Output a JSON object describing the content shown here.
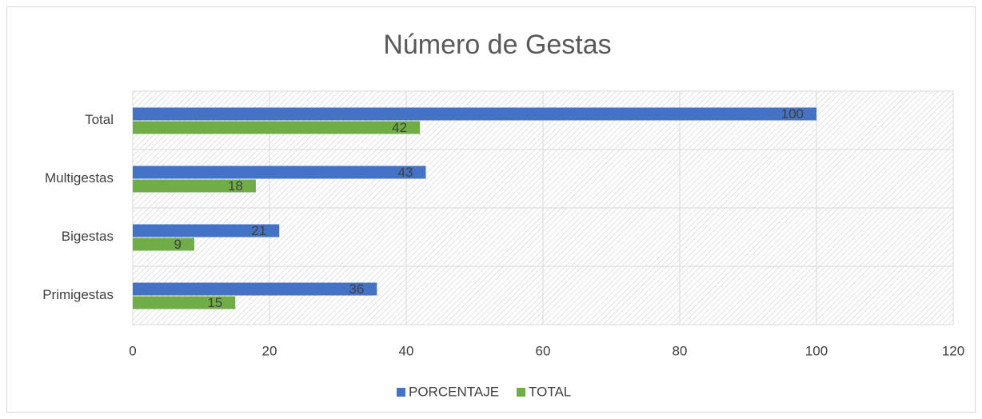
{
  "chart_data": {
    "type": "bar",
    "orientation": "horizontal",
    "title": "Número de Gestas",
    "categories": [
      "Total",
      "Multigestas",
      "Bigestas",
      "Primigestas"
    ],
    "series": [
      {
        "name": "PORCENTAJE",
        "color": "#4472c4",
        "values": [
          100,
          42.86,
          21.43,
          35.71
        ],
        "value_labels": [
          "100",
          "43",
          "21",
          "36"
        ]
      },
      {
        "name": "TOTAL",
        "color": "#70ad47",
        "values": [
          42,
          18,
          9,
          15
        ]
      }
    ],
    "xlim": [
      0,
      120
    ],
    "xticks": [
      0,
      20,
      40,
      60,
      80,
      100,
      120
    ],
    "grid": true,
    "legend": "bottom"
  }
}
